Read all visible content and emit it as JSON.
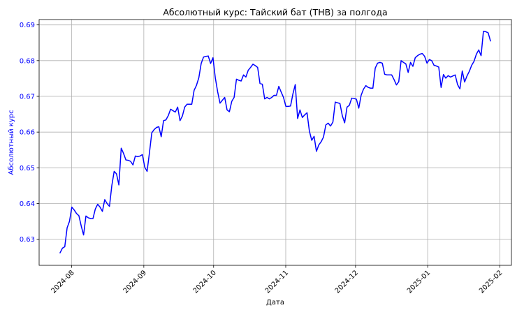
{
  "chart_data": {
    "type": "line",
    "title": "Абсолютный курс: Тайский бат (THB) за полгода",
    "xlabel": "Дата",
    "ylabel": "Абсолютный курс",
    "x_start": "2024-07-27",
    "x_end": "2025-01-28",
    "xlim": [
      "2024-07-18",
      "2025-02-06"
    ],
    "ylim": [
      0.6227,
      0.6915
    ],
    "grid": true,
    "line_color": "#0000ff",
    "ylabel_color": "#0000ff",
    "ytick_color": "#0000ff",
    "x_ticks": [
      {
        "value": "2024-08-01",
        "label": "2024-08"
      },
      {
        "value": "2024-09-01",
        "label": "2024-09"
      },
      {
        "value": "2024-10-01",
        "label": "2024-10"
      },
      {
        "value": "2024-11-01",
        "label": "2024-11"
      },
      {
        "value": "2024-12-01",
        "label": "2024-12"
      },
      {
        "value": "2025-01-01",
        "label": "2025-01"
      },
      {
        "value": "2025-02-01",
        "label": "2025-02"
      }
    ],
    "y_ticks": [
      {
        "value": 0.63,
        "label": "0.63"
      },
      {
        "value": 0.64,
        "label": "0.64"
      },
      {
        "value": 0.65,
        "label": "0.65"
      },
      {
        "value": 0.66,
        "label": "0.66"
      },
      {
        "value": 0.67,
        "label": "0.67"
      },
      {
        "value": 0.68,
        "label": "0.68"
      },
      {
        "value": 0.69,
        "label": "0.69"
      }
    ],
    "series": [
      {
        "values": [
          0.6262,
          0.6275,
          0.6279,
          0.6332,
          0.635,
          0.639,
          0.6382,
          0.6372,
          0.6366,
          0.6337,
          0.6312,
          0.6365,
          0.636,
          0.6358,
          0.6358,
          0.6385,
          0.6398,
          0.639,
          0.6378,
          0.6411,
          0.64,
          0.6392,
          0.645,
          0.649,
          0.6483,
          0.6452,
          0.6555,
          0.654,
          0.6522,
          0.6521,
          0.6518,
          0.6508,
          0.6533,
          0.6531,
          0.6533,
          0.6537,
          0.6502,
          0.649,
          0.6542,
          0.6598,
          0.6607,
          0.6613,
          0.6615,
          0.6587,
          0.6632,
          0.6634,
          0.6646,
          0.6664,
          0.666,
          0.6656,
          0.667,
          0.6632,
          0.6645,
          0.667,
          0.6678,
          0.6678,
          0.6678,
          0.6717,
          0.6731,
          0.6752,
          0.6792,
          0.681,
          0.6812,
          0.6813,
          0.6792,
          0.6808,
          0.6752,
          0.6713,
          0.6681,
          0.6689,
          0.6697,
          0.6662,
          0.6657,
          0.6686,
          0.6697,
          0.6748,
          0.6745,
          0.6743,
          0.676,
          0.6754,
          0.6773,
          0.6781,
          0.679,
          0.6786,
          0.6781,
          0.6736,
          0.6734,
          0.6693,
          0.6697,
          0.6693,
          0.6697,
          0.6703,
          0.6703,
          0.6728,
          0.6712,
          0.6697,
          0.6672,
          0.6672,
          0.6673,
          0.6707,
          0.6733,
          0.6638,
          0.6662,
          0.6641,
          0.6648,
          0.6654,
          0.6603,
          0.6577,
          0.6588,
          0.6546,
          0.6564,
          0.6573,
          0.6586,
          0.662,
          0.6625,
          0.6617,
          0.6628,
          0.6684,
          0.6682,
          0.668,
          0.6646,
          0.6626,
          0.667,
          0.6675,
          0.6695,
          0.6694,
          0.6692,
          0.6667,
          0.6703,
          0.672,
          0.673,
          0.6725,
          0.6723,
          0.6723,
          0.6779,
          0.6793,
          0.6795,
          0.6793,
          0.6762,
          0.676,
          0.676,
          0.676,
          0.6747,
          0.6732,
          0.6741,
          0.68,
          0.6795,
          0.6791,
          0.6767,
          0.6795,
          0.6784,
          0.6808,
          0.6814,
          0.6818,
          0.682,
          0.6812,
          0.6793,
          0.6803,
          0.68,
          0.6787,
          0.6785,
          0.6782,
          0.6725,
          0.6761,
          0.6751,
          0.6758,
          0.6754,
          0.6757,
          0.676,
          0.6733,
          0.6721,
          0.6771,
          0.674,
          0.6757,
          0.677,
          0.6787,
          0.6798,
          0.6818,
          0.683,
          0.6814,
          0.6882,
          0.6881,
          0.6878,
          0.6855
        ]
      }
    ]
  }
}
